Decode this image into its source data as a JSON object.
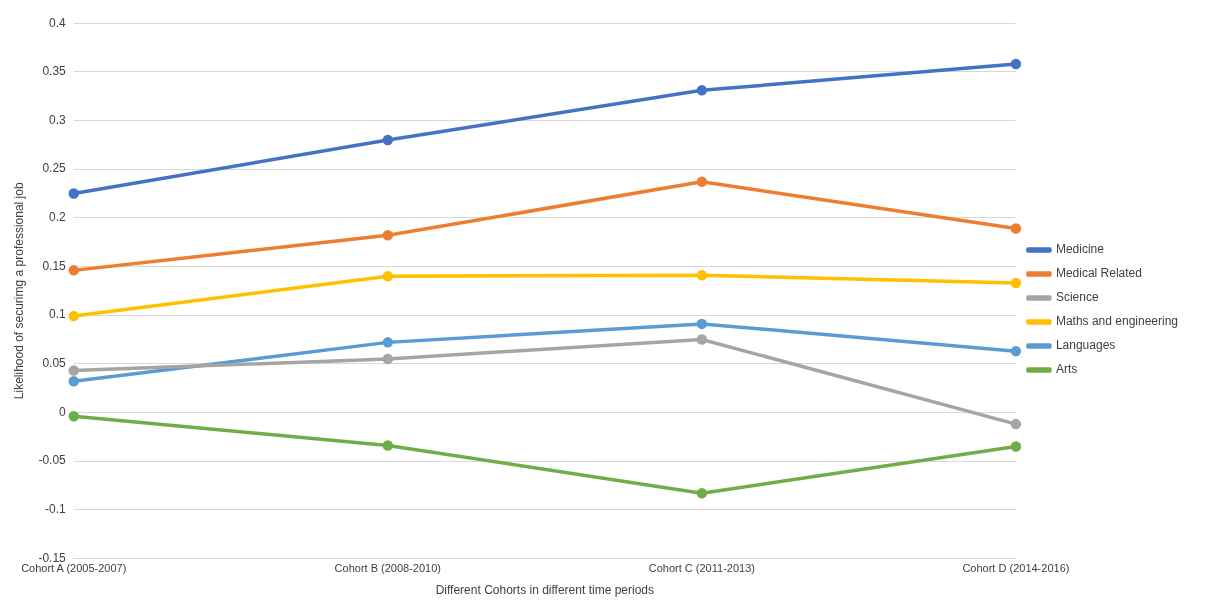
{
  "chart_data": {
    "type": "line",
    "xlabel": "Different Cohorts in different time periods",
    "ylabel": "Likelihood of securimg a professional job",
    "categories": [
      "Cohort A (2005-2007)",
      "Cohort B (2008-2010)",
      "Cohort C (2011-2013)",
      "Cohort D (2014-2016)"
    ],
    "series": [
      {
        "name": "Medicine",
        "color": "#4472c4",
        "values": [
          0.225,
          0.28,
          0.331,
          0.358
        ]
      },
      {
        "name": "Medical Related",
        "color": "#ed7d31",
        "values": [
          0.146,
          0.182,
          0.237,
          0.189
        ]
      },
      {
        "name": "Science",
        "color": "#a5a5a5",
        "values": [
          0.043,
          0.055,
          0.075,
          -0.012
        ]
      },
      {
        "name": "Maths and engineering",
        "color": "#ffc000",
        "values": [
          0.099,
          0.14,
          0.141,
          0.133
        ]
      },
      {
        "name": "Languages",
        "color": "#5b9bd5",
        "values": [
          0.032,
          0.072,
          0.091,
          0.063
        ]
      },
      {
        "name": "Arts",
        "color": "#70ad47",
        "values": [
          -0.004,
          -0.034,
          -0.083,
          -0.035
        ]
      }
    ],
    "ylim": [
      -0.15,
      0.4
    ],
    "yticks": [
      -0.15,
      -0.1,
      -0.05,
      0,
      0.05,
      0.1,
      0.15,
      0.2,
      0.25,
      0.3,
      0.35,
      0.4
    ],
    "grid": "y",
    "legend": "right",
    "marker": "circle",
    "line_style": "solid"
  }
}
